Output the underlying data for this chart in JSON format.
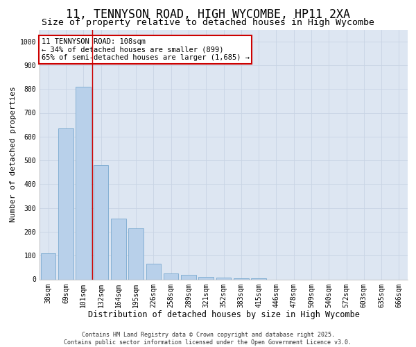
{
  "title1": "11, TENNYSON ROAD, HIGH WYCOMBE, HP11 2XA",
  "title2": "Size of property relative to detached houses in High Wycombe",
  "xlabel": "Distribution of detached houses by size in High Wycombe",
  "ylabel": "Number of detached properties",
  "categories": [
    "38sqm",
    "69sqm",
    "101sqm",
    "132sqm",
    "164sqm",
    "195sqm",
    "226sqm",
    "258sqm",
    "289sqm",
    "321sqm",
    "352sqm",
    "383sqm",
    "415sqm",
    "446sqm",
    "478sqm",
    "509sqm",
    "540sqm",
    "572sqm",
    "603sqm",
    "635sqm",
    "666sqm"
  ],
  "values": [
    110,
    635,
    810,
    480,
    255,
    215,
    65,
    25,
    18,
    10,
    8,
    5,
    5,
    0,
    0,
    0,
    0,
    0,
    0,
    0,
    0
  ],
  "bar_color": "#b8d0ea",
  "bar_edge_color": "#7aaad0",
  "grid_color": "#c8d4e4",
  "background_color": "#dde6f2",
  "red_line_x": 2.5,
  "annotation_text": "11 TENNYSON ROAD: 108sqm\n← 34% of detached houses are smaller (899)\n65% of semi-detached houses are larger (1,685) →",
  "annotation_box_color": "#ffffff",
  "annotation_box_edge": "#cc0000",
  "ylim": [
    0,
    1050
  ],
  "yticks": [
    0,
    100,
    200,
    300,
    400,
    500,
    600,
    700,
    800,
    900,
    1000
  ],
  "footer": "Contains HM Land Registry data © Crown copyright and database right 2025.\nContains public sector information licensed under the Open Government Licence v3.0.",
  "title1_fontsize": 12,
  "title2_fontsize": 9.5,
  "xlabel_fontsize": 8.5,
  "ylabel_fontsize": 8,
  "tick_fontsize": 7,
  "annotation_fontsize": 7.5,
  "footer_fontsize": 6
}
